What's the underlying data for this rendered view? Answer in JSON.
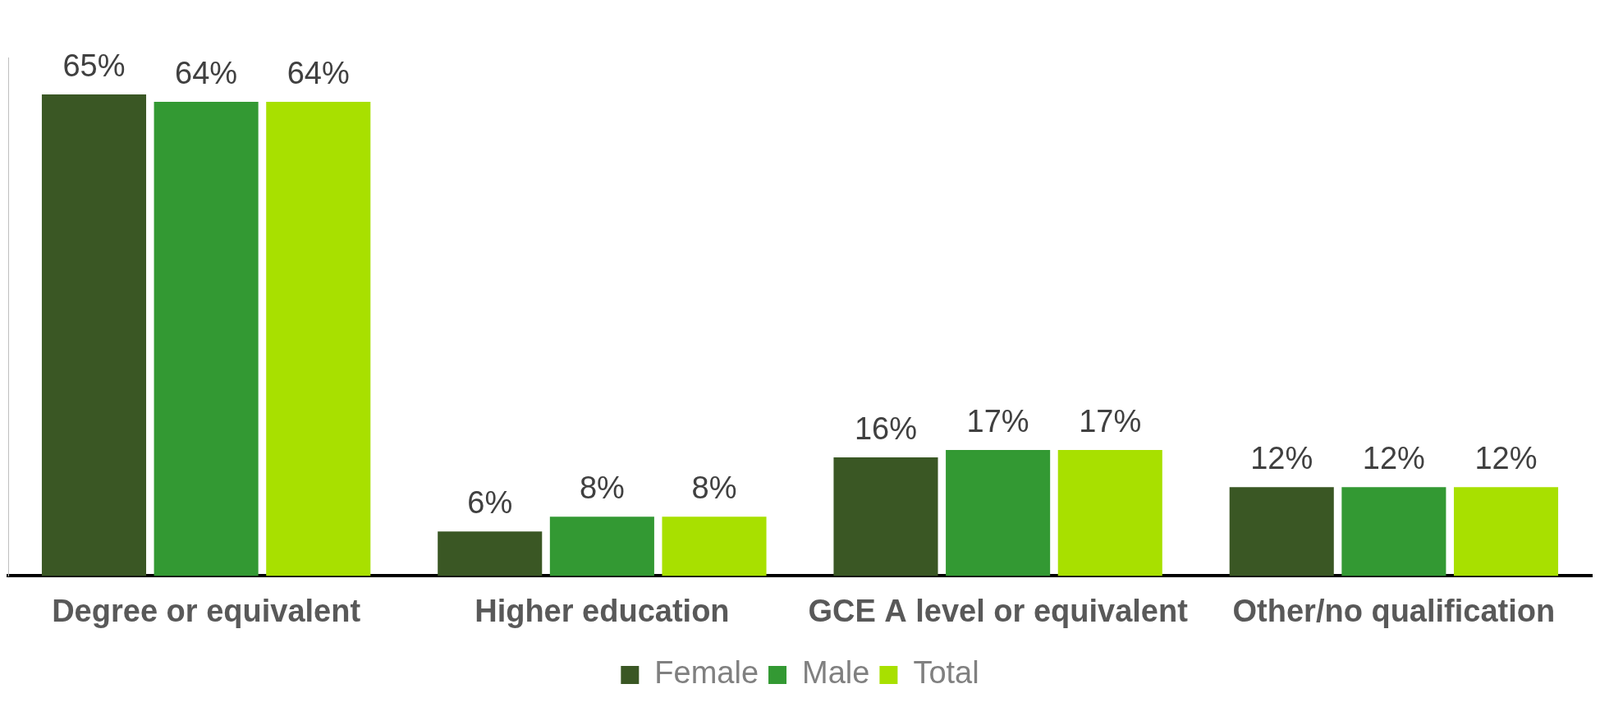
{
  "chart_data": {
    "type": "bar",
    "categories": [
      "Degree or equivalent",
      "Higher education",
      "GCE A level or equivalent",
      "Other/no qualification"
    ],
    "series": [
      {
        "name": "Female",
        "color": "#3a5724",
        "values": [
          65,
          6,
          16,
          12
        ],
        "value_labels": [
          "65%",
          "6%",
          "16%",
          "12%"
        ]
      },
      {
        "name": "Male",
        "color": "#339933",
        "values": [
          64,
          8,
          17,
          12
        ],
        "value_labels": [
          "64%",
          "8%",
          "17%",
          "12%"
        ]
      },
      {
        "name": "Total",
        "color": "#a8e000",
        "values": [
          64,
          8,
          17,
          12
        ],
        "value_labels": [
          "64%",
          "8%",
          "17%",
          "12%"
        ]
      }
    ],
    "ylim": [
      0,
      70
    ],
    "grid": false,
    "legend": "bottom",
    "data_labels": true,
    "tick_labels": "x"
  }
}
